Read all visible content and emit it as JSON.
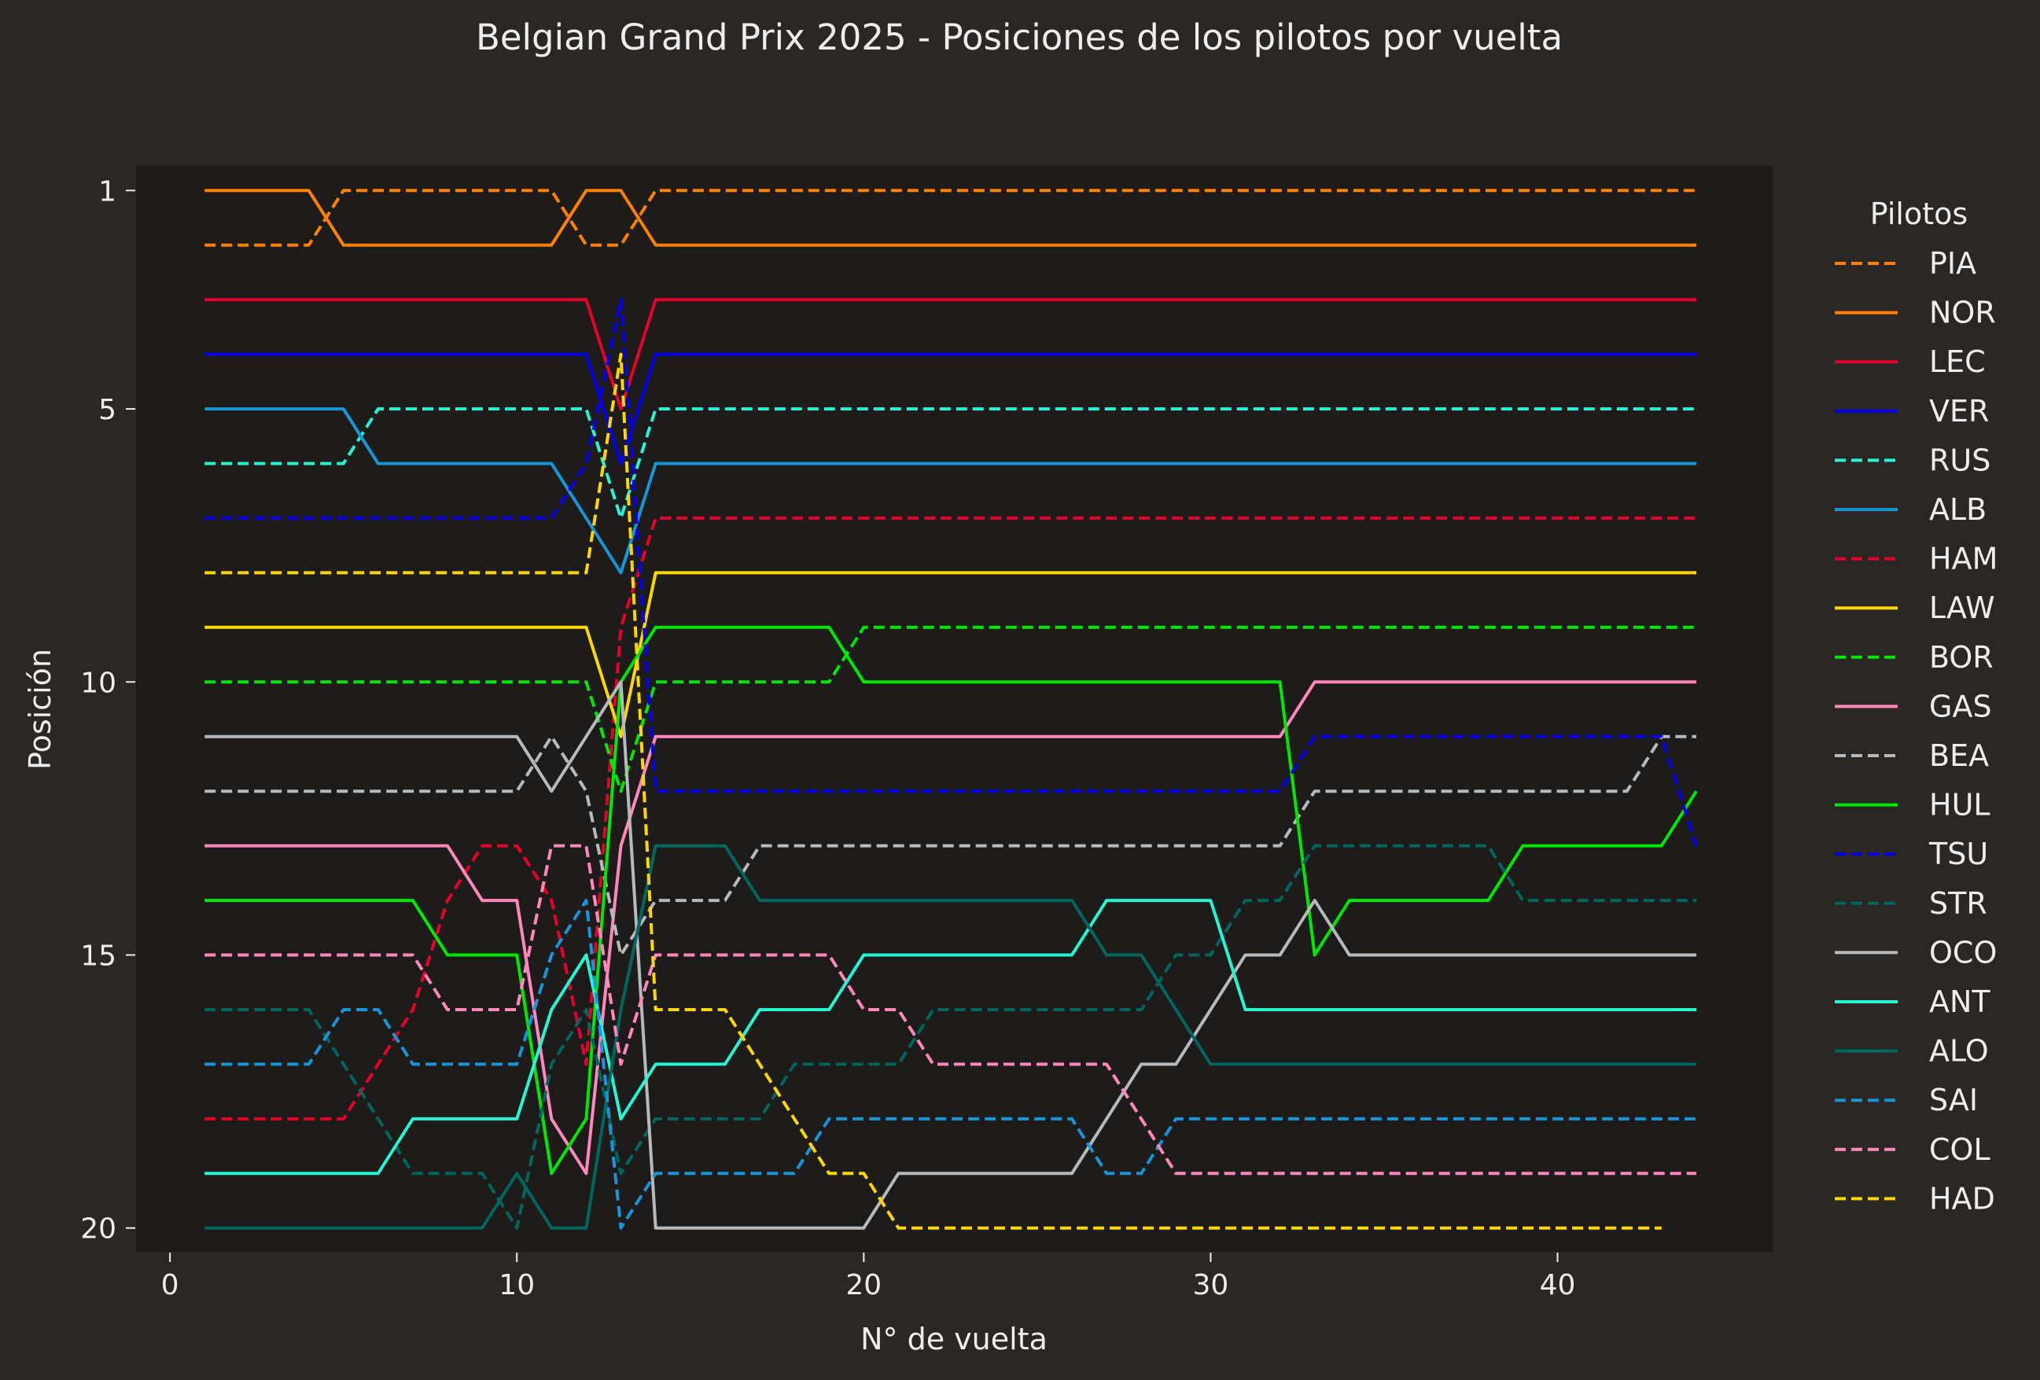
{
  "chart_data": {
    "type": "line",
    "title": "Belgian Grand Prix 2025 - Posiciones de los pilotos por vuelta",
    "xlabel": "N° de vuelta",
    "ylabel": "Posición",
    "xlim": [
      -1.0,
      46.2
    ],
    "ylim": [
      20.45,
      0.55
    ],
    "y_inverted": true,
    "xticks": [
      0,
      10,
      20,
      30,
      40
    ],
    "yticks": [
      1,
      5,
      10,
      15,
      20
    ],
    "grid": false,
    "legend_title": "Pilotos",
    "legend_position": "outside-right",
    "colors": {
      "figure_bg": "#2a2725",
      "axes_bg": "#1d1c1b",
      "text": "#eeeeee",
      "papaya": "#ff8000",
      "red": "#e8002d",
      "blue": "#0600ef",
      "teal": "#27f4d2",
      "williams": "#1795d6",
      "yellow": "#fcd700",
      "green": "#00e701",
      "pink": "#ff87bc",
      "grey": "#b6babd",
      "aston": "#00665f"
    },
    "laps": [
      1,
      2,
      3,
      4,
      5,
      6,
      7,
      8,
      9,
      10,
      11,
      12,
      13,
      14,
      15,
      16,
      17,
      18,
      19,
      20,
      21,
      22,
      23,
      24,
      25,
      26,
      27,
      28,
      29,
      30,
      31,
      32,
      33,
      34,
      35,
      36,
      37,
      38,
      39,
      40,
      41,
      42,
      43,
      44
    ],
    "series": [
      {
        "name": "PIA",
        "color": "#ff8000",
        "dashed": true,
        "values": [
          2,
          2,
          2,
          2,
          1,
          1,
          1,
          1,
          1,
          1,
          1,
          2,
          2,
          1,
          1,
          1,
          1,
          1,
          1,
          1,
          1,
          1,
          1,
          1,
          1,
          1,
          1,
          1,
          1,
          1,
          1,
          1,
          1,
          1,
          1,
          1,
          1,
          1,
          1,
          1,
          1,
          1,
          1,
          1
        ]
      },
      {
        "name": "NOR",
        "color": "#ff8000",
        "dashed": false,
        "values": [
          1,
          1,
          1,
          1,
          2,
          2,
          2,
          2,
          2,
          2,
          2,
          1,
          1,
          2,
          2,
          2,
          2,
          2,
          2,
          2,
          2,
          2,
          2,
          2,
          2,
          2,
          2,
          2,
          2,
          2,
          2,
          2,
          2,
          2,
          2,
          2,
          2,
          2,
          2,
          2,
          2,
          2,
          2,
          2
        ]
      },
      {
        "name": "LEC",
        "color": "#e8002d",
        "dashed": false,
        "values": [
          3,
          3,
          3,
          3,
          3,
          3,
          3,
          3,
          3,
          3,
          3,
          3,
          5,
          3,
          3,
          3,
          3,
          3,
          3,
          3,
          3,
          3,
          3,
          3,
          3,
          3,
          3,
          3,
          3,
          3,
          3,
          3,
          3,
          3,
          3,
          3,
          3,
          3,
          3,
          3,
          3,
          3,
          3,
          3
        ]
      },
      {
        "name": "VER",
        "color": "#0600ef",
        "dashed": false,
        "values": [
          4,
          4,
          4,
          4,
          4,
          4,
          4,
          4,
          4,
          4,
          4,
          4,
          6,
          4,
          4,
          4,
          4,
          4,
          4,
          4,
          4,
          4,
          4,
          4,
          4,
          4,
          4,
          4,
          4,
          4,
          4,
          4,
          4,
          4,
          4,
          4,
          4,
          4,
          4,
          4,
          4,
          4,
          4,
          4
        ]
      },
      {
        "name": "RUS",
        "color": "#27f4d2",
        "dashed": true,
        "values": [
          6,
          6,
          6,
          6,
          6,
          5,
          5,
          5,
          5,
          5,
          5,
          5,
          7,
          5,
          5,
          5,
          5,
          5,
          5,
          5,
          5,
          5,
          5,
          5,
          5,
          5,
          5,
          5,
          5,
          5,
          5,
          5,
          5,
          5,
          5,
          5,
          5,
          5,
          5,
          5,
          5,
          5,
          5,
          5
        ]
      },
      {
        "name": "ALB",
        "color": "#1795d6",
        "dashed": false,
        "values": [
          5,
          5,
          5,
          5,
          5,
          6,
          6,
          6,
          6,
          6,
          6,
          7,
          8,
          6,
          6,
          6,
          6,
          6,
          6,
          6,
          6,
          6,
          6,
          6,
          6,
          6,
          6,
          6,
          6,
          6,
          6,
          6,
          6,
          6,
          6,
          6,
          6,
          6,
          6,
          6,
          6,
          6,
          6,
          6
        ]
      },
      {
        "name": "HAM",
        "color": "#e8002d",
        "dashed": true,
        "values": [
          18,
          18,
          18,
          18,
          18,
          17,
          16,
          14,
          13,
          13,
          14,
          17,
          9,
          7,
          7,
          7,
          7,
          7,
          7,
          7,
          7,
          7,
          7,
          7,
          7,
          7,
          7,
          7,
          7,
          7,
          7,
          7,
          7,
          7,
          7,
          7,
          7,
          7,
          7,
          7,
          7,
          7,
          7,
          7
        ]
      },
      {
        "name": "LAW",
        "color": "#fcd700",
        "dashed": false,
        "values": [
          9,
          9,
          9,
          9,
          9,
          9,
          9,
          9,
          9,
          9,
          9,
          9,
          11,
          8,
          8,
          8,
          8,
          8,
          8,
          8,
          8,
          8,
          8,
          8,
          8,
          8,
          8,
          8,
          8,
          8,
          8,
          8,
          8,
          8,
          8,
          8,
          8,
          8,
          8,
          8,
          8,
          8,
          8,
          8
        ]
      },
      {
        "name": "BOR",
        "color": "#00e701",
        "dashed": true,
        "values": [
          10,
          10,
          10,
          10,
          10,
          10,
          10,
          10,
          10,
          10,
          10,
          10,
          12,
          10,
          10,
          10,
          10,
          10,
          10,
          9,
          9,
          9,
          9,
          9,
          9,
          9,
          9,
          9,
          9,
          9,
          9,
          9,
          9,
          9,
          9,
          9,
          9,
          9,
          9,
          9,
          9,
          9,
          9,
          9
        ]
      },
      {
        "name": "GAS",
        "color": "#ff87bc",
        "dashed": false,
        "values": [
          13,
          13,
          13,
          13,
          13,
          13,
          13,
          13,
          14,
          14,
          18,
          19,
          13,
          11,
          11,
          11,
          11,
          11,
          11,
          11,
          11,
          11,
          11,
          11,
          11,
          11,
          11,
          11,
          11,
          11,
          11,
          11,
          10,
          10,
          10,
          10,
          10,
          10,
          10,
          10,
          10,
          10,
          10,
          10
        ]
      },
      {
        "name": "BEA",
        "color": "#b6babd",
        "dashed": true,
        "values": [
          12,
          12,
          12,
          12,
          12,
          12,
          12,
          12,
          12,
          12,
          11,
          12,
          15,
          14,
          14,
          14,
          13,
          13,
          13,
          13,
          13,
          13,
          13,
          13,
          13,
          13,
          13,
          13,
          13,
          13,
          13,
          13,
          12,
          12,
          12,
          12,
          12,
          12,
          12,
          12,
          12,
          12,
          11,
          11
        ]
      },
      {
        "name": "HUL",
        "color": "#00e701",
        "dashed": false,
        "values": [
          14,
          14,
          14,
          14,
          14,
          14,
          14,
          15,
          15,
          15,
          19,
          18,
          10,
          9,
          9,
          9,
          9,
          9,
          9,
          10,
          10,
          10,
          10,
          10,
          10,
          10,
          10,
          10,
          10,
          10,
          10,
          10,
          15,
          14,
          14,
          14,
          14,
          14,
          13,
          13,
          13,
          13,
          13,
          12
        ]
      },
      {
        "name": "TSU",
        "color": "#0600ef",
        "dashed": true,
        "values": [
          7,
          7,
          7,
          7,
          7,
          7,
          7,
          7,
          7,
          7,
          7,
          6,
          3,
          12,
          12,
          12,
          12,
          12,
          12,
          12,
          12,
          12,
          12,
          12,
          12,
          12,
          12,
          12,
          12,
          12,
          12,
          12,
          11,
          11,
          11,
          11,
          11,
          11,
          11,
          11,
          11,
          11,
          11,
          13
        ]
      },
      {
        "name": "STR",
        "color": "#00665f",
        "dashed": true,
        "values": [
          16,
          16,
          16,
          16,
          17,
          18,
          19,
          19,
          19,
          20,
          17,
          16,
          19,
          18,
          18,
          18,
          18,
          17,
          17,
          17,
          17,
          16,
          16,
          16,
          16,
          16,
          16,
          16,
          15,
          15,
          14,
          14,
          13,
          13,
          13,
          13,
          13,
          13,
          14,
          14,
          14,
          14,
          14,
          14
        ]
      },
      {
        "name": "OCO",
        "color": "#b6babd",
        "dashed": false,
        "values": [
          11,
          11,
          11,
          11,
          11,
          11,
          11,
          11,
          11,
          11,
          12,
          11,
          10,
          20,
          20,
          20,
          20,
          20,
          20,
          20,
          19,
          19,
          19,
          19,
          19,
          19,
          18,
          17,
          17,
          16,
          15,
          15,
          14,
          15,
          15,
          15,
          15,
          15,
          15,
          15,
          15,
          15,
          15,
          15
        ]
      },
      {
        "name": "ANT",
        "color": "#27f4d2",
        "dashed": false,
        "values": [
          19,
          19,
          19,
          19,
          19,
          19,
          18,
          18,
          18,
          18,
          16,
          15,
          18,
          17,
          17,
          17,
          16,
          16,
          16,
          15,
          15,
          15,
          15,
          15,
          15,
          15,
          14,
          14,
          14,
          14,
          16,
          16,
          16,
          16,
          16,
          16,
          16,
          16,
          16,
          16,
          16,
          16,
          16,
          16
        ]
      },
      {
        "name": "ALO",
        "color": "#00665f",
        "dashed": false,
        "values": [
          20,
          20,
          20,
          20,
          20,
          20,
          20,
          20,
          20,
          19,
          20,
          20,
          16,
          13,
          13,
          13,
          14,
          14,
          14,
          14,
          14,
          14,
          14,
          14,
          14,
          14,
          15,
          15,
          16,
          17,
          17,
          17,
          17,
          17,
          17,
          17,
          17,
          17,
          17,
          17,
          17,
          17,
          17,
          17
        ]
      },
      {
        "name": "SAI",
        "color": "#1795d6",
        "dashed": true,
        "values": [
          17,
          17,
          17,
          17,
          16,
          16,
          17,
          17,
          17,
          17,
          15,
          14,
          20,
          19,
          19,
          19,
          19,
          19,
          18,
          18,
          18,
          18,
          18,
          18,
          18,
          18,
          19,
          19,
          18,
          18,
          18,
          18,
          18,
          18,
          18,
          18,
          18,
          18,
          18,
          18,
          18,
          18,
          18,
          18
        ]
      },
      {
        "name": "COL",
        "color": "#ff87bc",
        "dashed": true,
        "values": [
          15,
          15,
          15,
          15,
          15,
          15,
          15,
          16,
          16,
          16,
          13,
          13,
          17,
          15,
          15,
          15,
          15,
          15,
          15,
          16,
          16,
          17,
          17,
          17,
          17,
          17,
          17,
          18,
          19,
          19,
          19,
          19,
          19,
          19,
          19,
          19,
          19,
          19,
          19,
          19,
          19,
          19,
          19,
          19
        ]
      },
      {
        "name": "HAD",
        "color": "#fcd700",
        "dashed": true,
        "values": [
          8,
          8,
          8,
          8,
          8,
          8,
          8,
          8,
          8,
          8,
          8,
          8,
          4,
          16,
          16,
          16,
          17,
          18,
          19,
          19,
          20,
          20,
          20,
          20,
          20,
          20,
          20,
          20,
          20,
          20,
          20,
          20,
          20,
          20,
          20,
          20,
          20,
          20,
          20,
          20,
          20,
          20,
          20,
          null
        ]
      }
    ]
  }
}
